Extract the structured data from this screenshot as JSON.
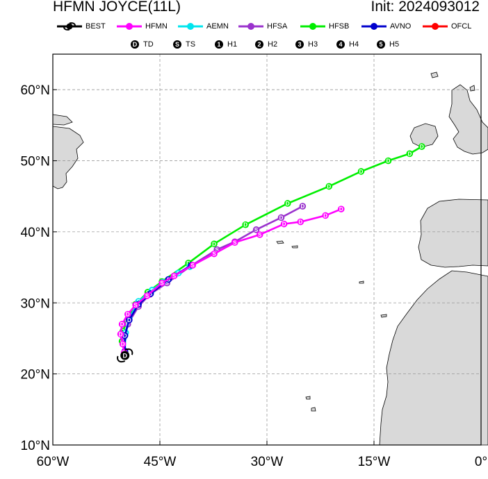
{
  "title_left": "HFMN JOYCE(11L)",
  "title_right": "Init: 2024093012",
  "legend": [
    {
      "label": "BEST",
      "color": "#000000",
      "icon": "hurricane-symbol-icon"
    },
    {
      "label": "HFMN",
      "color": "#ff00ff"
    },
    {
      "label": "AEMN",
      "color": "#00e5ee"
    },
    {
      "label": "HFSA",
      "color": "#9a32cd"
    },
    {
      "label": "HFSB",
      "color": "#00ee00"
    },
    {
      "label": "AVNO",
      "color": "#0000cd"
    },
    {
      "label": "OFCL",
      "color": "#ff0000"
    }
  ],
  "intensity_legend": [
    {
      "symbol": "D",
      "label": "TD"
    },
    {
      "symbol": "S",
      "label": "TS"
    },
    {
      "symbol": "1",
      "label": "H1"
    },
    {
      "symbol": "2",
      "label": "H2"
    },
    {
      "symbol": "3",
      "label": "H3"
    },
    {
      "symbol": "4",
      "label": "H4"
    },
    {
      "symbol": "5",
      "label": "H5"
    }
  ],
  "map": {
    "lon_range": [
      -60,
      0
    ],
    "lat_range": [
      10,
      65
    ],
    "lon_ticks": [
      {
        "lon": -60,
        "label": "60°W"
      },
      {
        "lon": -45,
        "label": "45°W"
      },
      {
        "lon": -30,
        "label": "30°W"
      },
      {
        "lon": -15,
        "label": "15°W"
      },
      {
        "lon": 0,
        "label": "0°"
      }
    ],
    "lat_ticks": [
      {
        "lat": 10,
        "label": "10°N"
      },
      {
        "lat": 20,
        "label": "20°N"
      },
      {
        "lat": 30,
        "label": "30°N"
      },
      {
        "lat": 40,
        "label": "40°N"
      },
      {
        "lat": 50,
        "label": "50°N"
      },
      {
        "lat": 60,
        "label": "60°N"
      }
    ],
    "grid": "dashed",
    "land_color": "#d9d9d9"
  },
  "tracks": [
    {
      "model": "HFSB",
      "color": "#00ee00",
      "points": [
        [
          -49.9,
          23.2,
          "D"
        ],
        [
          -50.3,
          24.6,
          "D"
        ],
        [
          -50.2,
          26.0,
          "D"
        ],
        [
          -49.6,
          27.5,
          "D"
        ],
        [
          -48.4,
          29.8,
          "S"
        ],
        [
          -46.7,
          31.5,
          "S"
        ],
        [
          -44.7,
          33.0,
          "S"
        ],
        [
          -41.0,
          35.6,
          "D"
        ],
        [
          -37.4,
          38.3,
          "D"
        ],
        [
          -33.0,
          41.0,
          "D"
        ],
        [
          -27.1,
          44.0,
          "D"
        ],
        [
          -21.3,
          46.4,
          "D"
        ],
        [
          -16.8,
          48.5,
          "D"
        ],
        [
          -13.0,
          50.0,
          "D"
        ],
        [
          -10.0,
          51.0,
          "D"
        ],
        [
          -8.3,
          52.0,
          "D"
        ]
      ]
    },
    {
      "model": "HFSA",
      "color": "#9a32cd",
      "points": [
        [
          -49.9,
          23.2,
          "D"
        ],
        [
          -50.1,
          25.0,
          "D"
        ],
        [
          -49.5,
          27.0,
          "D"
        ],
        [
          -48.0,
          29.5,
          "S"
        ],
        [
          -46.4,
          31.2,
          "S"
        ],
        [
          -44.0,
          32.8,
          "S"
        ],
        [
          -40.5,
          35.3,
          "S"
        ],
        [
          -37.0,
          37.5,
          "S"
        ],
        [
          -34.5,
          38.6,
          "S"
        ],
        [
          -31.5,
          40.3,
          "S"
        ],
        [
          -28.0,
          42.0,
          "D"
        ],
        [
          -25.0,
          43.6,
          "D"
        ]
      ]
    },
    {
      "model": "AEMN",
      "color": "#00e5ee",
      "points": [
        [
          -49.9,
          23.2,
          "D"
        ],
        [
          -49.8,
          25.8,
          "D"
        ],
        [
          -49.3,
          27.8,
          "D"
        ],
        [
          -48.0,
          30.2,
          "S"
        ],
        [
          -46.1,
          31.8,
          "S"
        ],
        [
          -44.6,
          32.9,
          "S"
        ],
        [
          -42.4,
          34.2,
          "S"
        ],
        [
          -40.8,
          35.1,
          "S"
        ]
      ]
    },
    {
      "model": "AVNO",
      "color": "#0000cd",
      "points": [
        [
          -49.9,
          23.2,
          "D"
        ],
        [
          -49.9,
          25.4,
          "D"
        ],
        [
          -49.3,
          27.6,
          "D"
        ],
        [
          -48.0,
          29.8,
          "S"
        ],
        [
          -46.3,
          31.3,
          "S"
        ],
        [
          -43.8,
          33.3,
          "S"
        ],
        [
          -40.6,
          35.3,
          "S"
        ]
      ]
    },
    {
      "model": "HFMN",
      "color": "#ff00ff",
      "points": [
        [
          -50.0,
          23.0,
          "D"
        ],
        [
          -50.2,
          24.2,
          "D"
        ],
        [
          -50.5,
          25.6,
          "D"
        ],
        [
          -50.3,
          27.0,
          "D"
        ],
        [
          -49.5,
          28.4,
          "D"
        ],
        [
          -48.4,
          29.7,
          "S"
        ],
        [
          -46.8,
          31.0,
          "S"
        ],
        [
          -44.7,
          32.8,
          "S"
        ],
        [
          -43.0,
          33.8,
          "S"
        ],
        [
          -40.4,
          35.3,
          "S"
        ],
        [
          -37.4,
          36.9,
          "S"
        ],
        [
          -34.5,
          38.5,
          "S"
        ],
        [
          -31.0,
          39.6,
          "S"
        ],
        [
          -27.6,
          41.1,
          "D"
        ],
        [
          -25.3,
          41.4,
          "D"
        ],
        [
          -21.8,
          42.3,
          "D"
        ],
        [
          -19.6,
          43.2,
          "D"
        ]
      ]
    }
  ],
  "best_track": {
    "lon": -49.9,
    "lat": 22.6,
    "label": "D"
  }
}
